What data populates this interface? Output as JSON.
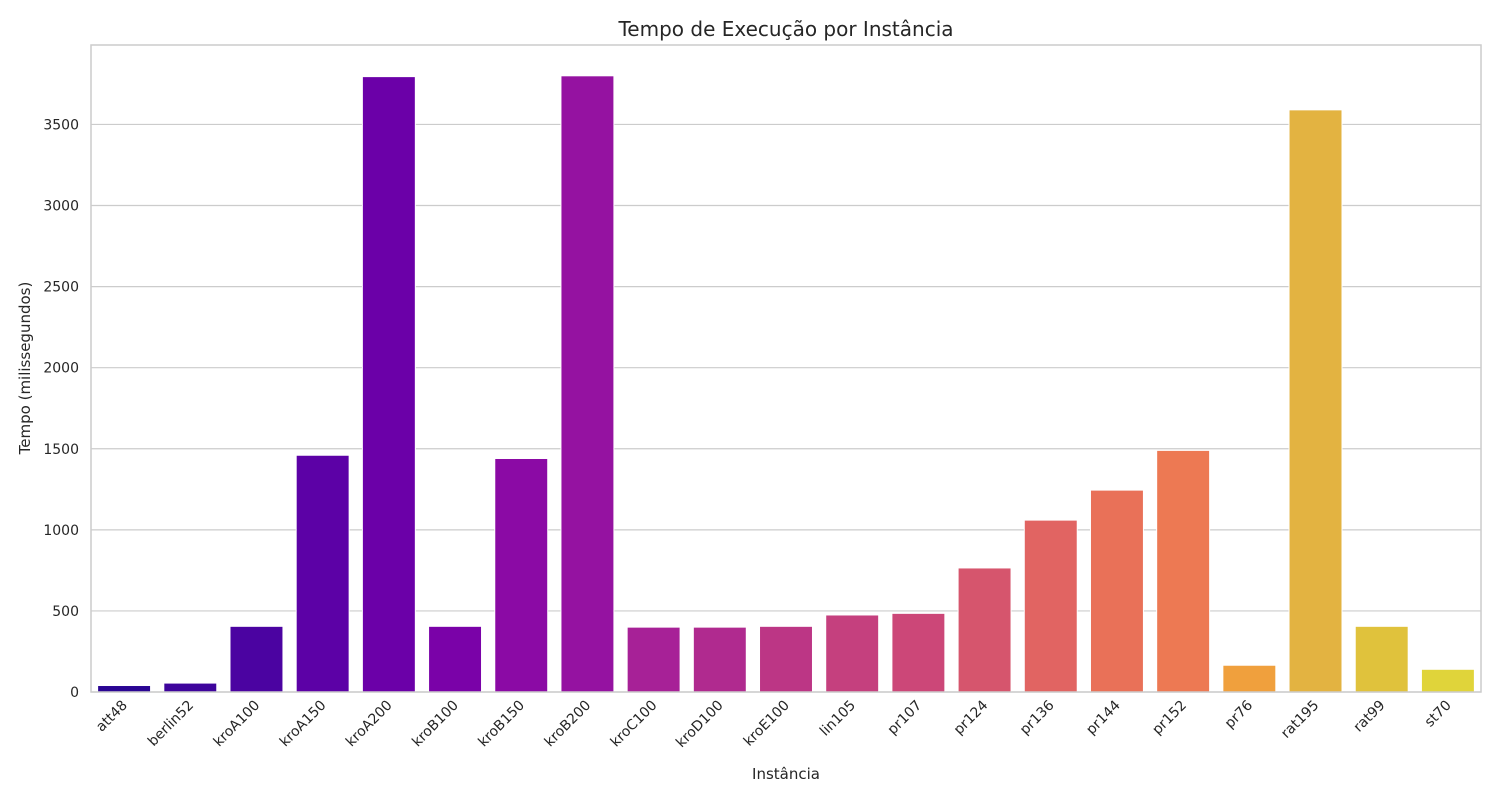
{
  "chart_data": {
    "type": "bar",
    "title": "Tempo de Execução por Instância",
    "xlabel": "Instância",
    "ylabel": "Tempo (milissegundos)",
    "categories": [
      "att48",
      "berlin52",
      "kroA100",
      "kroA150",
      "kroA200",
      "kroB100",
      "kroB150",
      "kroB200",
      "kroC100",
      "kroD100",
      "kroE100",
      "lin105",
      "pr107",
      "pr124",
      "pr136",
      "pr144",
      "pr152",
      "pr76",
      "rat195",
      "rat99",
      "st70"
    ],
    "values": [
      40,
      55,
      405,
      1460,
      3795,
      405,
      1440,
      3800,
      400,
      400,
      405,
      475,
      485,
      765,
      1060,
      1245,
      1490,
      165,
      3590,
      405,
      140
    ],
    "colors": [
      "#2a0593",
      "#3e049c",
      "#4b03a1",
      "#5c01a6",
      "#6b00a8",
      "#7a02a8",
      "#8b0aa5",
      "#9512a1",
      "#a72197",
      "#b02a8f",
      "#bc3685",
      "#c5407e",
      "#cc4778",
      "#d6556d",
      "#e16462",
      "#e97158",
      "#ed7953",
      "#f0a03d",
      "#e3b341",
      "#e0c23c",
      "#e0d43a"
    ],
    "ylim": [
      0,
      3990
    ],
    "yticks": [
      0,
      500,
      1000,
      1500,
      2000,
      2500,
      3000,
      3500
    ],
    "grid": "horizontal",
    "legend": "none"
  }
}
